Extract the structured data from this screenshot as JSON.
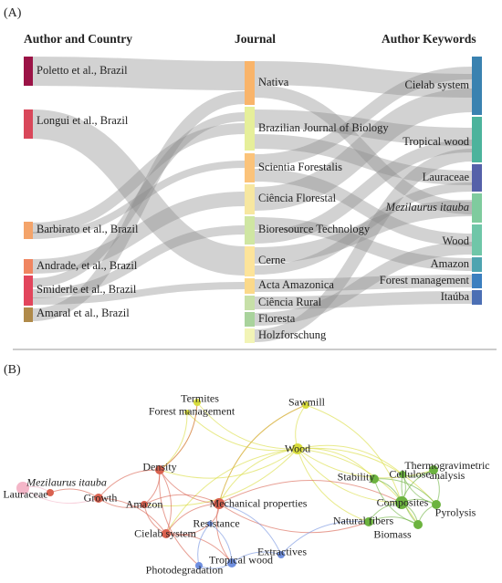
{
  "panel_a": {
    "label": "(A)",
    "columns": [
      {
        "header": "Author and Country",
        "nodes": [
          "Poletto et al., Brazil",
          "Longui et al., Brazil",
          "Barbirato et al., Brazil",
          "Andrade, et al., Brazil",
          "Smiderle et al., Brazil",
          "Amaral et al., Brazil"
        ]
      },
      {
        "header": "Journal",
        "nodes": [
          "Nativa",
          "Brazilian Journal of Biology",
          "Scientia Forestalis",
          "Ciência Florestal",
          "Bioresource Technology",
          "Cerne",
          "Acta Amazonica",
          "Ciência Rural",
          "Floresta",
          "Holzforschung"
        ]
      },
      {
        "header": "Author Keywords",
        "nodes": [
          "Cielab system",
          "Tropical wood",
          "Lauraceae",
          "Mezilaurus itauba",
          "Wood",
          "Amazon",
          "Forest management",
          "Itaúba"
        ]
      }
    ]
  },
  "panel_b": {
    "label": "(B)",
    "nodes": [
      "Termites",
      "Forest management",
      "Sawmill",
      "Wood",
      "Density",
      "Mezilaurus itauba",
      "Lauraceae",
      "Growth",
      "Amazon",
      "Mechanical properties",
      "Cielab system",
      "Resistance",
      "Photodegradation",
      "Tropical wood",
      "Extractives",
      "Cellulose",
      "Thermogravimetric analysis",
      "Stability",
      "Composites",
      "Pyrolysis",
      "Natural fibers",
      "Biomass"
    ]
  }
}
